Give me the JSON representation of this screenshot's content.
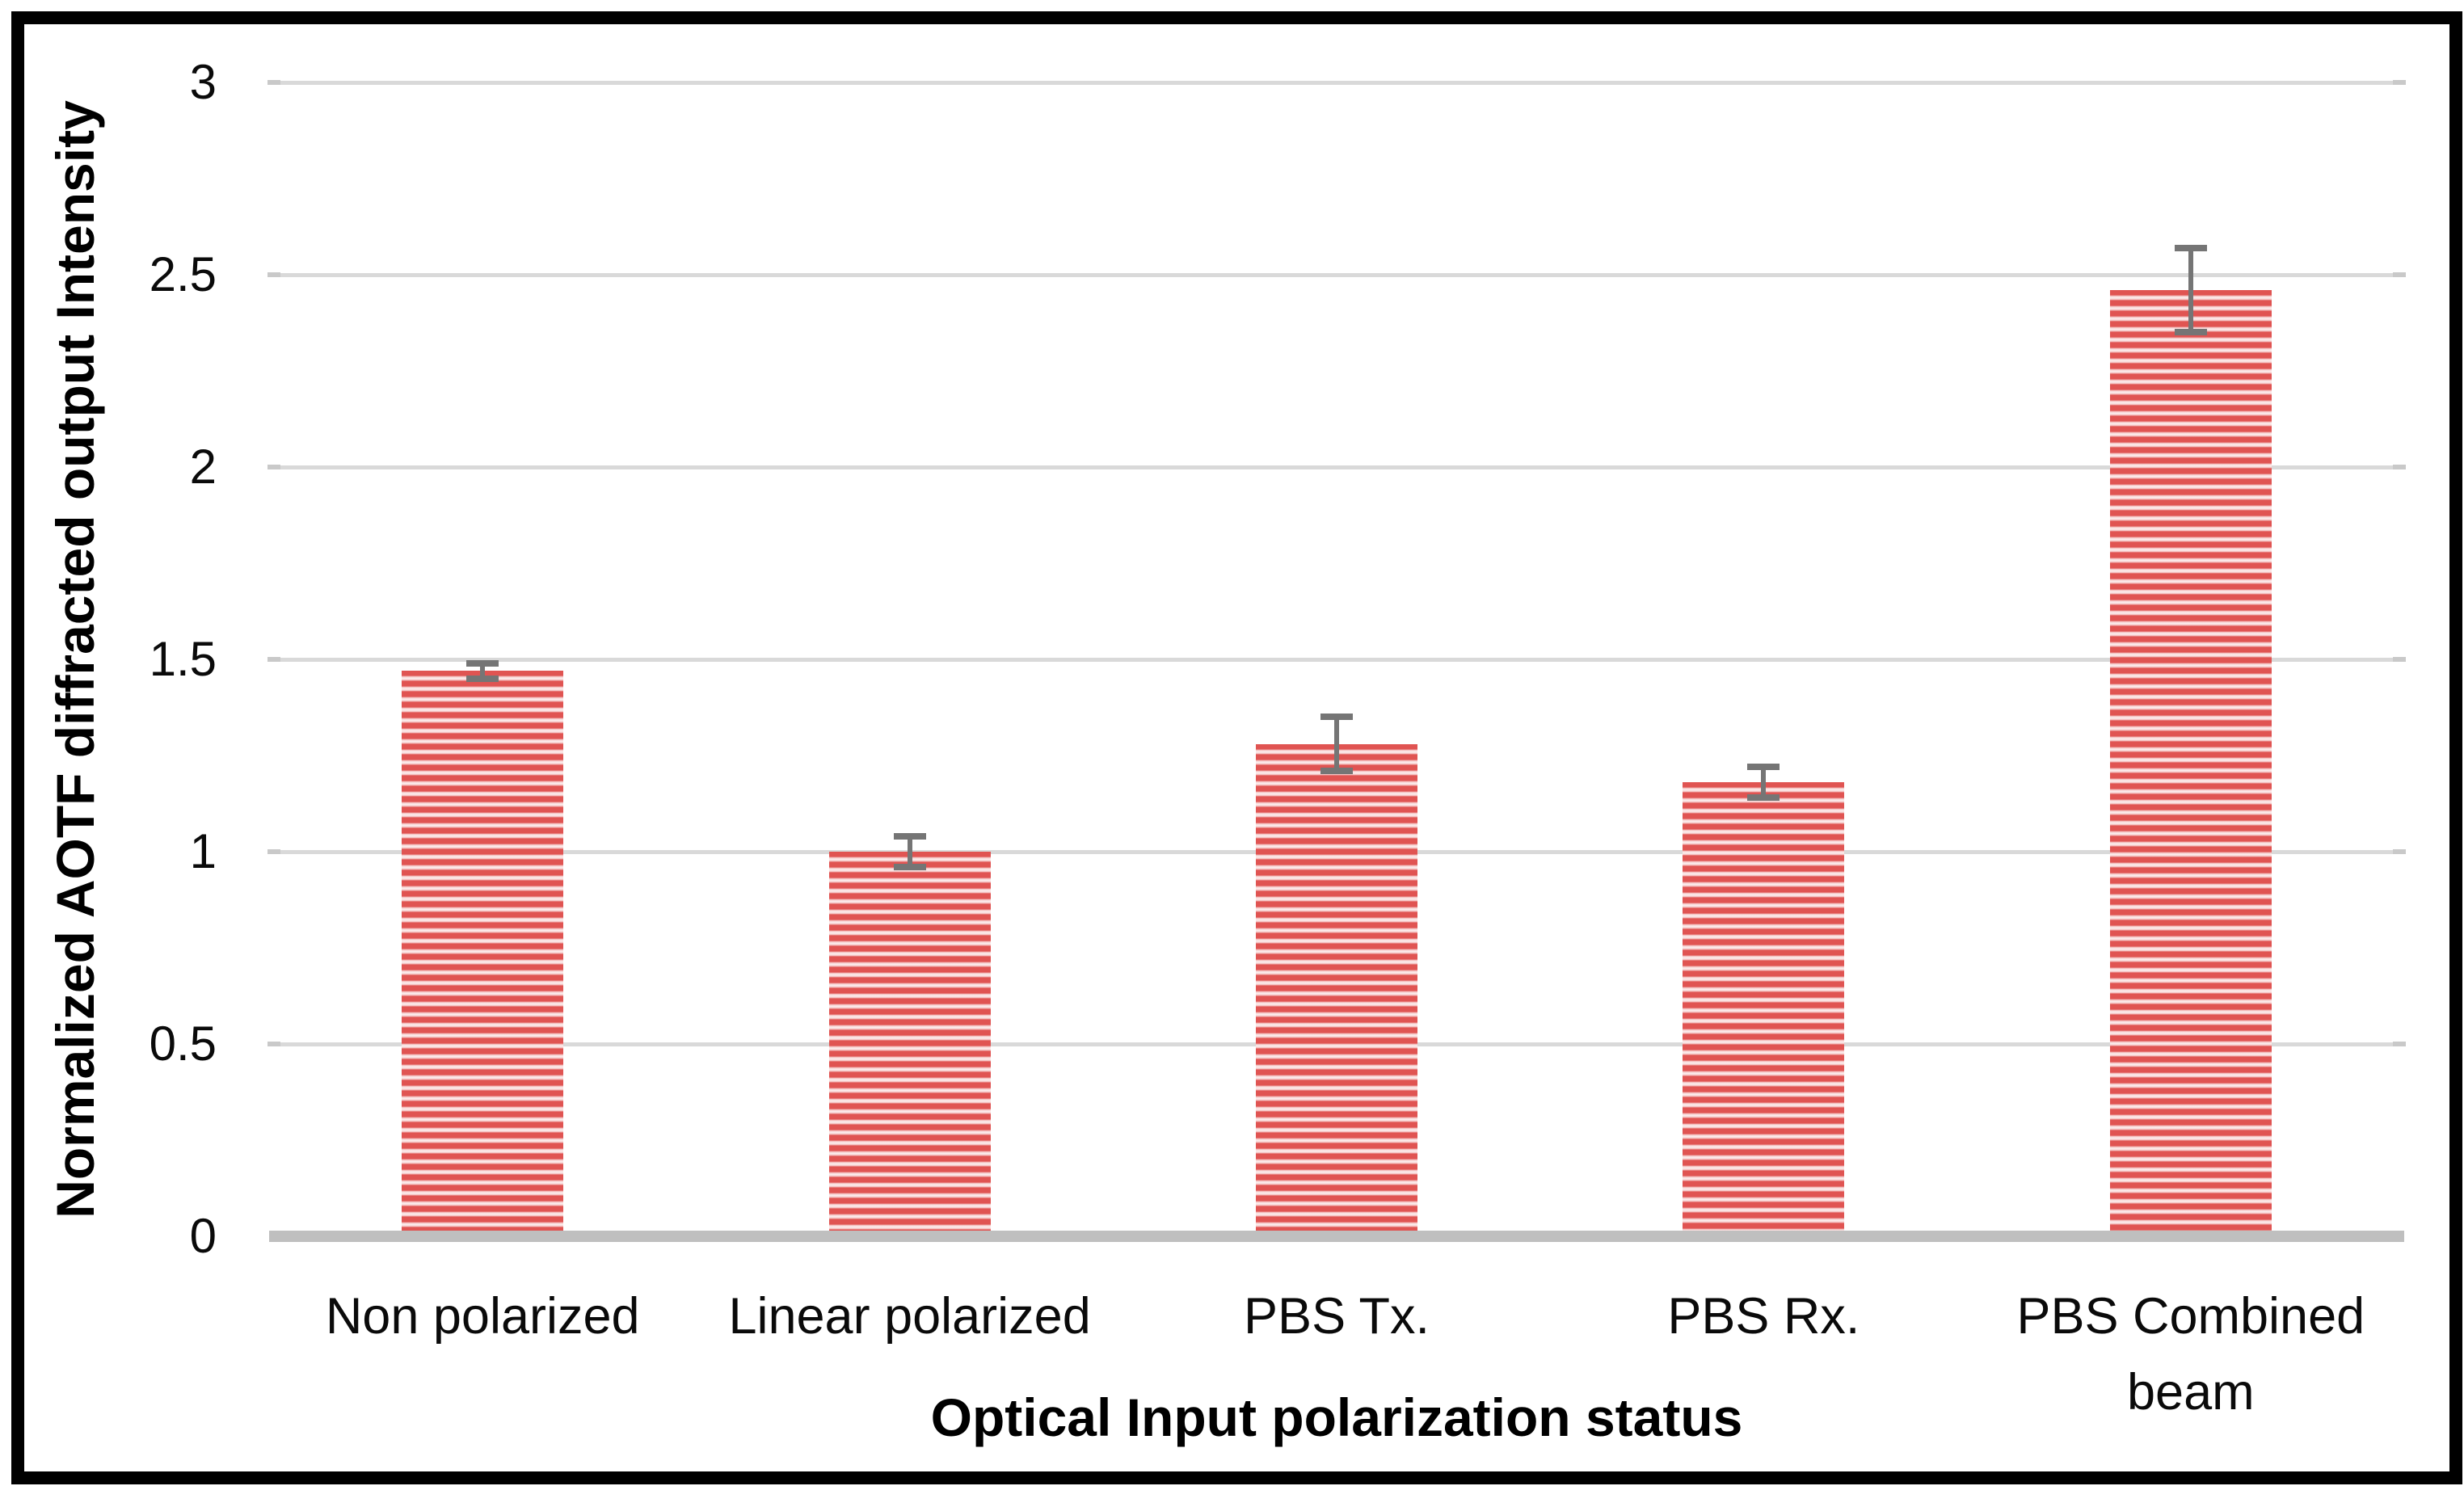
{
  "figure": {
    "background": "#ffffff",
    "frame_color": "#000000"
  },
  "chart_data": {
    "type": "bar",
    "title": "",
    "xlabel": "Optical Input polarization status",
    "ylabel": "Normalized AOTF diffracted output Intensity",
    "categories": [
      "Non polarized",
      "Linear polarized",
      "PBS Tx.",
      "PBS Rx.",
      "PBS Combined beam"
    ],
    "values": [
      1.47,
      1.0,
      1.28,
      1.18,
      2.46
    ],
    "error_bars": [
      0.02,
      0.04,
      0.07,
      0.04,
      0.11
    ],
    "yticks": [
      "0",
      "0.5",
      "1",
      "1.5",
      "2",
      "2.5",
      "3"
    ],
    "ylim": [
      0,
      3
    ],
    "grid": true,
    "legend": false,
    "bar_pattern": "horizontal-stripes",
    "colors": {
      "bar_stripe_red": "#e05452",
      "bar_stripe_light": "#fdf1f1",
      "bar_stripe_mid": "#f5caca",
      "error_bar": "#757575",
      "gridline": "#d9d9d9",
      "axis_line": "#bfbfbf",
      "text": "#000000"
    }
  }
}
